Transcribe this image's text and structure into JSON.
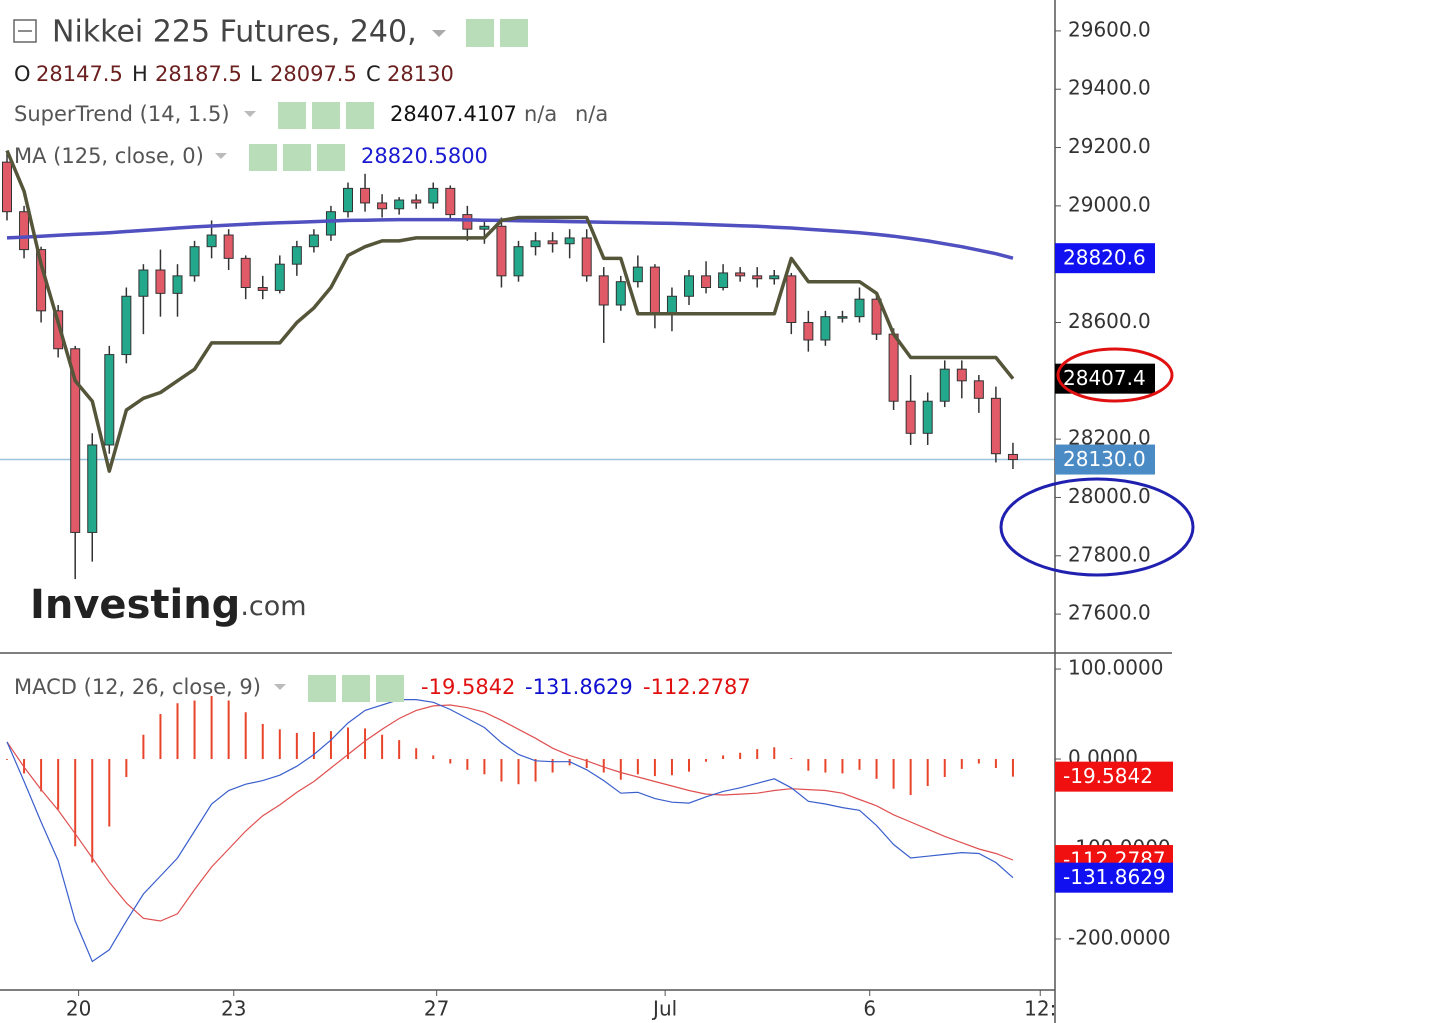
{
  "chart_data": [
    {
      "type": "candlestick",
      "title": "Nikkei 225 Futures, 240,",
      "ohlc_labels": [
        "O",
        "H",
        "L",
        "C"
      ],
      "close_tag_label": "28130.0",
      "close_tag_color": "#4a8bc6",
      "up_color": "#24a88c",
      "down_color": "#e05a68",
      "ylim": [
        27470,
        29706
      ],
      "yticks": [
        {
          "value": 29600,
          "label": "29600.0"
        },
        {
          "value": 29400,
          "label": "29400.0"
        },
        {
          "value": 29200,
          "label": "29200.0"
        },
        {
          "value": 29000,
          "label": "29000.0"
        },
        {
          "value": 28800,
          "label": "28800.0"
        },
        {
          "value": 28600,
          "label": "28600.0"
        },
        {
          "value": 28400,
          "label": "28400.0"
        },
        {
          "value": 28200,
          "label": "28200.0"
        },
        {
          "value": 28000,
          "label": "28000.0"
        },
        {
          "value": 27800,
          "label": "27800.0"
        },
        {
          "value": 27600,
          "label": "27600.0"
        }
      ],
      "xticks": [
        {
          "value": 4.2,
          "label": "20"
        },
        {
          "value": 13.3,
          "label": "23"
        },
        {
          "value": 25.2,
          "label": "27"
        },
        {
          "value": 38.6,
          "label": "Jul"
        },
        {
          "value": 50.6,
          "label": "6"
        },
        {
          "value": 60.6,
          "label": "12:"
        }
      ],
      "watermark": [
        "Investing",
        ".com"
      ],
      "candles": [
        [
          29150,
          29180,
          28950,
          28980
        ],
        [
          28980,
          29000,
          28820,
          28850
        ],
        [
          28850,
          28860,
          28600,
          28640
        ],
        [
          28640,
          28660,
          28480,
          28510
        ],
        [
          28510,
          28520,
          27720,
          27880
        ],
        [
          27880,
          28220,
          27780,
          28180
        ],
        [
          28180,
          28520,
          28150,
          28490
        ],
        [
          28490,
          28720,
          28460,
          28690
        ],
        [
          28690,
          28800,
          28560,
          28780
        ],
        [
          28780,
          28850,
          28620,
          28700
        ],
        [
          28700,
          28800,
          28620,
          28760
        ],
        [
          28760,
          28880,
          28740,
          28860
        ],
        [
          28860,
          28950,
          28820,
          28900
        ],
        [
          28900,
          28920,
          28780,
          28820
        ],
        [
          28820,
          28830,
          28680,
          28720
        ],
        [
          28720,
          28760,
          28680,
          28710
        ],
        [
          28710,
          28830,
          28700,
          28800
        ],
        [
          28800,
          28880,
          28760,
          28860
        ],
        [
          28860,
          28920,
          28840,
          28900
        ],
        [
          28900,
          29000,
          28880,
          28980
        ],
        [
          28980,
          29080,
          28960,
          29060
        ],
        [
          29060,
          29110,
          28980,
          29010
        ],
        [
          29010,
          29040,
          28960,
          28990
        ],
        [
          28990,
          29030,
          28970,
          29020
        ],
        [
          29020,
          29040,
          28990,
          29010
        ],
        [
          29010,
          29080,
          28990,
          29060
        ],
        [
          29060,
          29070,
          28950,
          28970
        ],
        [
          28970,
          29000,
          28880,
          28920
        ],
        [
          28920,
          28950,
          28870,
          28930
        ],
        [
          28930,
          28960,
          28720,
          28760
        ],
        [
          28760,
          28880,
          28740,
          28860
        ],
        [
          28860,
          28910,
          28830,
          28880
        ],
        [
          28880,
          28910,
          28840,
          28870
        ],
        [
          28870,
          28920,
          28820,
          28890
        ],
        [
          28890,
          28920,
          28740,
          28760
        ],
        [
          28760,
          28790,
          28530,
          28660
        ],
        [
          28660,
          28760,
          28640,
          28740
        ],
        [
          28740,
          28830,
          28720,
          28790
        ],
        [
          28790,
          28800,
          28580,
          28630
        ],
        [
          28630,
          28720,
          28570,
          28690
        ],
        [
          28690,
          28780,
          28660,
          28760
        ],
        [
          28760,
          28810,
          28700,
          28720
        ],
        [
          28720,
          28800,
          28710,
          28770
        ],
        [
          28770,
          28790,
          28740,
          28760
        ],
        [
          28760,
          28790,
          28720,
          28750
        ],
        [
          28750,
          28780,
          28730,
          28760
        ],
        [
          28760,
          28770,
          28560,
          28600
        ],
        [
          28600,
          28640,
          28500,
          28540
        ],
        [
          28540,
          28640,
          28520,
          28620
        ],
        [
          28620,
          28640,
          28600,
          28620
        ],
        [
          28620,
          28720,
          28600,
          28680
        ],
        [
          28680,
          28700,
          28540,
          28560
        ],
        [
          28560,
          28580,
          28300,
          28330
        ],
        [
          28330,
          28420,
          28180,
          28220
        ],
        [
          28220,
          28360,
          28180,
          28330
        ],
        [
          28330,
          28470,
          28310,
          28440
        ],
        [
          28440,
          28470,
          28340,
          28400
        ],
        [
          28400,
          28420,
          28290,
          28340
        ],
        [
          28340,
          28380,
          28120,
          28150
        ],
        [
          28147.5,
          28187.5,
          28097.5,
          28130
        ]
      ],
      "series": [
        {
          "name": "SuperTrend (14, 1.5)",
          "color": "#55553a",
          "extra": [
            "n/a",
            "n/a"
          ],
          "tag_label": "28407.4",
          "tag_color": "#000000",
          "values": [
            29190,
            29050,
            28800,
            28600,
            28400,
            28330,
            28090,
            28300,
            28340,
            28360,
            28400,
            28440,
            28530,
            28530,
            28530,
            28530,
            28530,
            28600,
            28650,
            28720,
            28830,
            28860,
            28880,
            28880,
            28890,
            28890,
            28890,
            28890,
            28890,
            28950,
            28960,
            28960,
            28960,
            28960,
            28960,
            28820,
            28820,
            28630,
            28630,
            28630,
            28630,
            28630,
            28630,
            28630,
            28630,
            28630,
            28820,
            28740,
            28740,
            28740,
            28740,
            28700,
            28560,
            28480,
            28480,
            28480,
            28480,
            28480,
            28480,
            28407.4107
          ]
        },
        {
          "name": "MA (125, close, 0)",
          "color": "#5050c0",
          "value_label": "28820.5800",
          "tag_label": "28820.6",
          "tag_color": "#1010f0",
          "values": [
            28890,
            28893,
            28896,
            28899,
            28902,
            28905,
            28908,
            28912,
            28916,
            28920,
            28924,
            28928,
            28931,
            28934,
            28937,
            28940,
            28942,
            28944,
            28946,
            28948,
            28950,
            28951,
            28952,
            28953,
            28953,
            28953,
            28953,
            28952,
            28951,
            28950,
            28949,
            28948,
            28947,
            28946,
            28945,
            28944,
            28943,
            28942,
            28941,
            28940,
            28938,
            28936,
            28934,
            28932,
            28930,
            28927,
            28924,
            28920,
            28916,
            28912,
            28908,
            28902,
            28896,
            28888,
            28880,
            28870,
            28860,
            28848,
            28836,
            28820.58
          ]
        }
      ]
    },
    {
      "type": "macd",
      "title": "MACD (12, 26, close, 9)",
      "ylim": [
        -256.7,
        115.6
      ],
      "yticks": [
        {
          "value": 100,
          "label": "100.0000"
        },
        {
          "value": 0,
          "label": "0.0000"
        },
        {
          "value": -100,
          "label": "-100.0000"
        },
        {
          "value": -200,
          "label": "-200.0000"
        }
      ],
      "series": [
        {
          "name": "Histogram",
          "color": "#e8442a",
          "tag_color": "#f01010",
          "values": [
            0,
            -16,
            -36,
            -56,
            -97,
            -115,
            -75,
            -20,
            27,
            50,
            62,
            65,
            70,
            65,
            52,
            39,
            33,
            29,
            30,
            31,
            35,
            34,
            27,
            21,
            12,
            4,
            -5,
            -12,
            -17,
            -25,
            -28,
            -25,
            -15,
            -7,
            -10,
            -15,
            -23,
            -17,
            -19,
            -18,
            -14,
            -3,
            4,
            7,
            11,
            13,
            1,
            -13,
            -15,
            -16,
            -12,
            -22,
            -33,
            -40,
            -30,
            -20,
            -11,
            -5,
            -10,
            -19.5842
          ]
        },
        {
          "name": "MACD",
          "color": "#3a5fcd",
          "tag_color": "#1010f0",
          "values": [
            19,
            -25,
            -70,
            -113,
            -180,
            -225,
            -212,
            -180,
            -150,
            -130,
            -110,
            -80,
            -50,
            -35,
            -28,
            -24,
            -18,
            -8,
            5,
            21,
            40,
            54,
            60,
            66,
            66,
            63,
            55,
            45,
            35,
            18,
            5,
            -2,
            -3,
            -3,
            -12,
            -24,
            -38,
            -37,
            -44,
            -48,
            -49,
            -42,
            -36,
            -32,
            -27,
            -22,
            -32,
            -47,
            -50,
            -54,
            -57,
            -74,
            -95,
            -110,
            -108,
            -106,
            -104,
            -105,
            -115,
            -131.8629
          ]
        },
        {
          "name": "Signal",
          "color": "#e05050",
          "tag_color": "#f01010",
          "values": [
            19,
            -9,
            -34,
            -57,
            -83,
            -110,
            -137,
            -160,
            -177,
            -180,
            -172,
            -145,
            -120,
            -100,
            -80,
            -63,
            -51,
            -37,
            -25,
            -10,
            5,
            20,
            33,
            45,
            54,
            59,
            60,
            57,
            52,
            43,
            33,
            23,
            12,
            4,
            -2,
            -9,
            -15,
            -20,
            -25,
            -30,
            -35,
            -39,
            -40,
            -39,
            -38,
            -35,
            -33,
            -34,
            -35,
            -38,
            -45,
            -52,
            -62,
            -70,
            -78,
            -86,
            -93,
            -100,
            -105,
            -112.2787
          ]
        }
      ]
    }
  ]
}
